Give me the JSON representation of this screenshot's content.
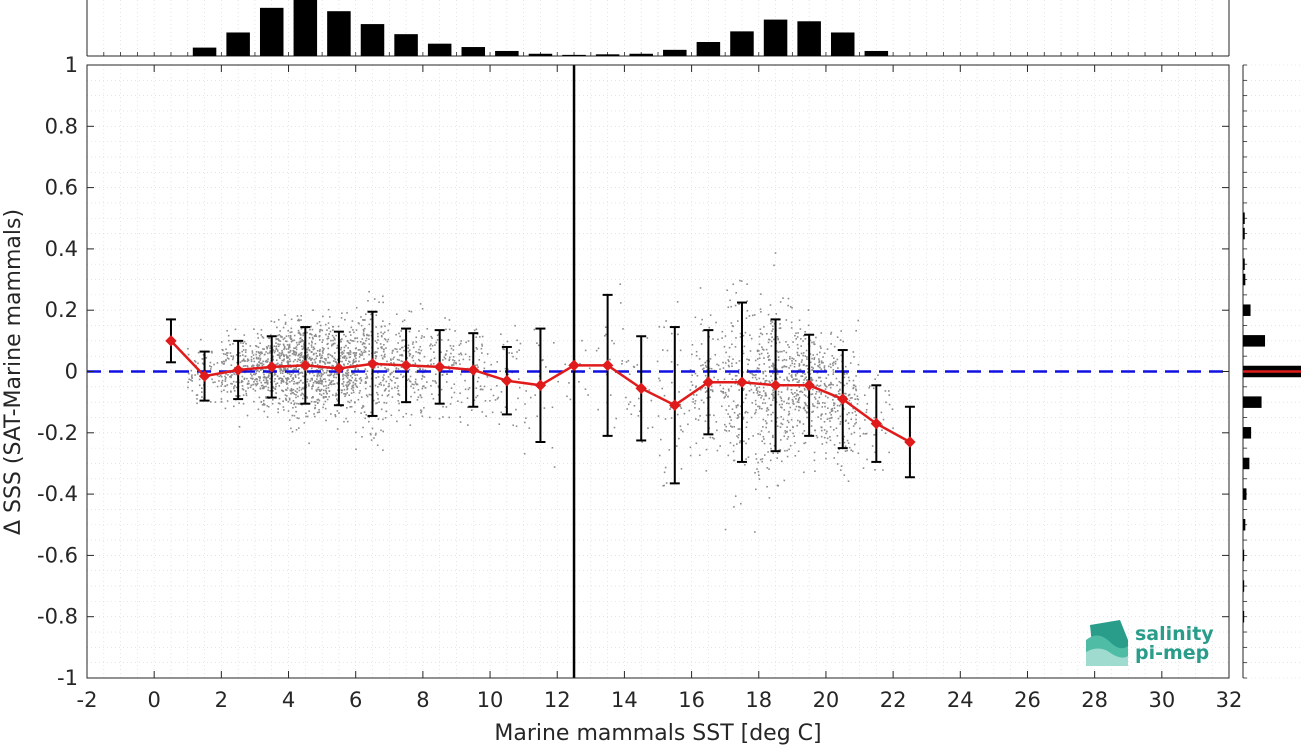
{
  "chart_data": {
    "type": "scatter",
    "xlabel": "Marine mammals SST [deg C]",
    "ylabel": "Δ SSS (SAT-Marine mammals)",
    "xlim": [
      -2,
      32
    ],
    "ylim": [
      -1,
      1
    ],
    "x_ticks": [
      "-2",
      "0",
      "2",
      "4",
      "6",
      "8",
      "10",
      "12",
      "14",
      "16",
      "18",
      "20",
      "22",
      "24",
      "26",
      "28",
      "30",
      "32"
    ],
    "y_ticks": [
      "1",
      "0.8",
      "0.6",
      "0.4",
      "0.2",
      "0",
      "-0.2",
      "-0.4",
      "-0.6",
      "-0.8",
      "-1"
    ],
    "grid": true,
    "reference_line_y": 0,
    "vertical_line_x": 12.5,
    "series": [
      {
        "role": "binned_mean_with_std",
        "x": [
          0.5,
          1.5,
          2.5,
          3.5,
          4.5,
          5.5,
          6.5,
          7.5,
          8.5,
          9.5,
          10.5,
          11.5,
          12.5,
          13.5,
          14.5,
          15.5,
          16.5,
          17.5,
          18.5,
          19.5,
          20.5,
          21.5,
          22.5
        ],
        "values": [
          0.1,
          -0.015,
          0.005,
          0.015,
          0.02,
          0.01,
          0.025,
          0.02,
          0.015,
          0.005,
          -0.03,
          -0.045,
          0.02,
          0.02,
          -0.055,
          -0.11,
          -0.035,
          -0.035,
          -0.045,
          -0.045,
          -0.09,
          -0.17,
          -0.23
        ],
        "std": [
          0.07,
          0.08,
          0.095,
          0.1,
          0.125,
          0.12,
          0.17,
          0.12,
          0.12,
          0.12,
          0.11,
          0.185,
          0.0,
          0.23,
          0.17,
          0.255,
          0.17,
          0.26,
          0.215,
          0.165,
          0.16,
          0.125,
          0.115
        ]
      }
    ],
    "top_histogram": {
      "bin_centers": [
        1.5,
        2.5,
        3.5,
        4.5,
        5.5,
        6.5,
        7.5,
        8.5,
        9.5,
        10.5,
        11.5,
        12.5,
        13.5,
        14.5,
        15.5,
        16.5,
        17.5,
        18.5,
        19.5,
        20.5,
        21.5
      ],
      "relative_heights": [
        0.15,
        0.42,
        0.86,
        1.0,
        0.8,
        0.57,
        0.39,
        0.22,
        0.16,
        0.09,
        0.04,
        0.02,
        0.03,
        0.04,
        0.11,
        0.25,
        0.44,
        0.65,
        0.62,
        0.42,
        0.09
      ]
    },
    "right_histogram": {
      "bin_centers": [
        0.5,
        0.45,
        0.35,
        0.3,
        0.2,
        0.1,
        0.0,
        -0.1,
        -0.2,
        -0.3,
        -0.4,
        -0.5,
        -0.6,
        -0.7,
        -0.8
      ],
      "relative_widths": [
        0.03,
        0.03,
        0.03,
        0.04,
        0.13,
        0.38,
        1.0,
        0.32,
        0.14,
        0.11,
        0.06,
        0.04,
        0.02,
        0.02,
        0.02
      ]
    },
    "colors": {
      "scatter": "#8c8c8c",
      "mean_line": "#e01b1b",
      "reference_line": "#1010e0",
      "errorbar": "#000000",
      "histogram": "#000000",
      "histogram_marker": "#e01b1b"
    }
  },
  "logo": {
    "line1": "salinity",
    "line2": "pi-mep",
    "color": "#2a9d8a"
  }
}
